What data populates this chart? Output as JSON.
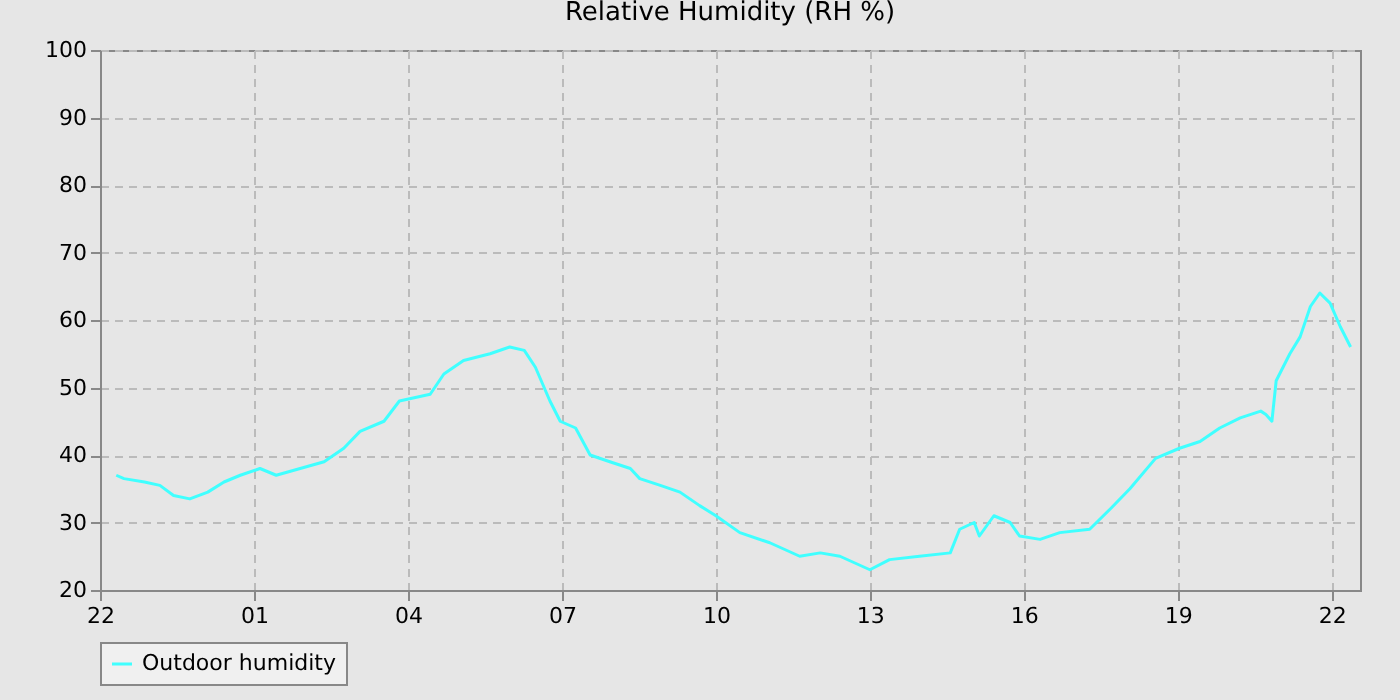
{
  "chart_data": {
    "type": "line",
    "title": "Relative Humidity (RH %)",
    "x": [
      "--01-01T22:19",
      "--01-01T22:28",
      "--01-01T22:52",
      "--01-01T23:10",
      "--01-01T23:26",
      "--01-01T23:45",
      "--01-02T00:06",
      "--01-02T00:25",
      "--01-02T00:44",
      "--01-02T01:07",
      "--01-02T01:26",
      "--01-02T01:54",
      "--01-02T02:22",
      "--01-02T02:45",
      "--01-02T03:04",
      "--01-02T03:32",
      "--01-02T03:50",
      "--01-02T04:26",
      "--01-02T04:42",
      "--01-02T05:05",
      "--01-02T05:36",
      "--01-02T05:59",
      "--01-02T06:16",
      "--01-02T06:29",
      "--01-02T06:46",
      "--01-02T06:58",
      "--01-02T07:16",
      "--01-02T07:33",
      "--01-02T07:56",
      "--01-02T08:20",
      "--01-02T08:31",
      "--01-02T08:55",
      "--01-02T09:18",
      "--01-02T09:41",
      "--01-02T10:00",
      "--01-02T10:28",
      "--01-02T11:03",
      "--01-02T11:38",
      "--01-02T12:02",
      "--01-02T12:25",
      "--01-02T13:00",
      "--01-02T13:23",
      "--01-02T13:58",
      "--01-02T14:34",
      "--01-02T14:45",
      "--01-02T15:02",
      "--01-02T15:08",
      "--01-02T15:25",
      "--01-02T15:44",
      "--01-02T15:55",
      "--01-02T16:19",
      "--01-02T16:42",
      "--01-02T17:17",
      "--01-02T17:41",
      "--01-02T18:04",
      "--01-02T18:34",
      "--01-02T19:02",
      "--01-02T19:26",
      "--01-02T19:49",
      "--01-02T20:13",
      "--01-02T20:37",
      "--01-02T20:43",
      "--01-02T20:50",
      "--01-02T20:55",
      "--01-02T21:11",
      "--01-02T21:23",
      "--01-02T21:35",
      "--01-02T21:46",
      "--01-02T21:58",
      "--01-02T22:10",
      "--01-02T22:22"
    ],
    "series": [
      {
        "name": "Outdoor humidity",
        "color": "#40ffff",
        "values": [
          37,
          36.5,
          36,
          35.5,
          34,
          33.5,
          34.5,
          36,
          37,
          38,
          37,
          38,
          39,
          41,
          43.5,
          45,
          48,
          49,
          52,
          54,
          55,
          56,
          55.5,
          53,
          48,
          45,
          44,
          40,
          39,
          38,
          36.5,
          35.5,
          34.5,
          32.5,
          31,
          28.5,
          27,
          25,
          25.5,
          25,
          23,
          24.5,
          25,
          25.5,
          29,
          30,
          28,
          31,
          30,
          28,
          27.5,
          28.5,
          29,
          32,
          35,
          39.5,
          41,
          42,
          44,
          45.5,
          46.5,
          46,
          45,
          51,
          55,
          57.5,
          62,
          64,
          62.5,
          59,
          56
        ]
      }
    ],
    "xlim": [
      "--01-01T22:00",
      "--01-02T22:33"
    ],
    "xticks": [
      {
        "value": "--01-01T22:00",
        "label": "22"
      },
      {
        "value": "--01-02T01:00",
        "label": "01"
      },
      {
        "value": "--01-02T04:00",
        "label": "04"
      },
      {
        "value": "--01-02T07:00",
        "label": "07"
      },
      {
        "value": "--01-02T10:00",
        "label": "10"
      },
      {
        "value": "--01-02T13:00",
        "label": "13"
      },
      {
        "value": "--01-02T16:00",
        "label": "16"
      },
      {
        "value": "--01-02T19:00",
        "label": "19"
      },
      {
        "value": "--01-02T22:00",
        "label": "22"
      }
    ],
    "ylim": [
      20,
      100
    ],
    "yticks": [
      20,
      30,
      40,
      50,
      60,
      70,
      80,
      90,
      100
    ],
    "grid": true,
    "legend": "bottom",
    "line_style": "solid",
    "marker": "none"
  }
}
